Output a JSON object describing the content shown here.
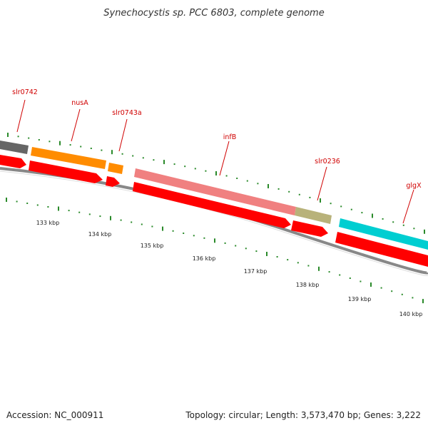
{
  "title": "Synechocystis sp. PCC 6803, complete genome",
  "footer": {
    "accession": "Accession: NC_000911",
    "summary": "Topology: circular; Length: 3,573,470 bp; Genes: 3,222"
  },
  "colors": {
    "cds": "#ff0000",
    "gene_label": "#d00000",
    "backbone": "#888888",
    "tick": "#2a8a2a"
  },
  "gene_labels": [
    "slr0742",
    "nusA",
    "slr0743a",
    "infB",
    "slr0236",
    "glgX"
  ],
  "features": [
    {
      "name": "slr0742",
      "color": "#666666"
    },
    {
      "name": "nusA",
      "color": "#ff8c00"
    },
    {
      "name": "slr0743a",
      "color": "#ff8c00"
    },
    {
      "name": "infB",
      "color": "#f08080"
    },
    {
      "name": "slr0236",
      "color": "#b8b27a"
    },
    {
      "name": "glgX",
      "color": "#00ced1"
    }
  ],
  "scale_labels": [
    "133 kbp",
    "134 kbp",
    "135 kbp",
    "136 kbp",
    "137 kbp",
    "138 kbp",
    "139 kbp",
    "140 kbp"
  ]
}
